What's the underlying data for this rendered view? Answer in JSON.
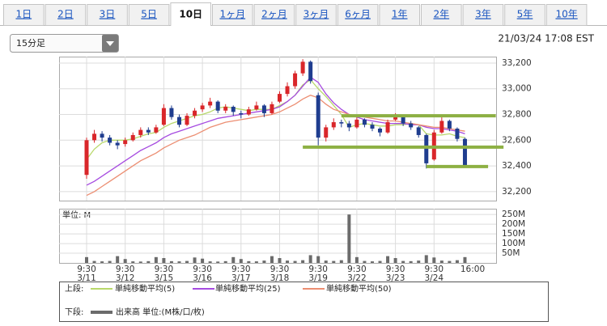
{
  "tabs": [
    "1日",
    "2日",
    "3日",
    "5日",
    "10日",
    "1ヶ月",
    "2ヶ月",
    "3ヶ月",
    "6ヶ月",
    "1年",
    "2年",
    "3年",
    "5年",
    "10年"
  ],
  "selected_tab": 4,
  "interval": "15分足",
  "timestamp": "21/03/24 17:08 EST",
  "legend": {
    "upper_label": "上段:",
    "lower_label": "下段:"
  },
  "chart_data": [
    {
      "type": "candlestick",
      "up_color": "#d9262a",
      "down_color": "#1f3d8f",
      "grid": true,
      "ylim": [
        32130,
        33250
      ],
      "yticks": [
        {
          "value": 32200,
          "label": "32,200"
        },
        {
          "value": 32400,
          "label": "32,400"
        },
        {
          "value": 32600,
          "label": "32,600"
        },
        {
          "value": 32800,
          "label": "32,800"
        },
        {
          "value": 33000,
          "label": "33,000"
        },
        {
          "value": 33200,
          "label": "33,200"
        }
      ],
      "open": [
        32330,
        32600,
        32650,
        32620,
        32580,
        32570,
        32600,
        32640,
        32680,
        32660,
        32720,
        32850,
        32780,
        32720,
        32790,
        32840,
        32870,
        32900,
        32830,
        32860,
        32810,
        32800,
        32840,
        32870,
        32810,
        32900,
        32960,
        33020,
        33120,
        33210,
        32950,
        32620,
        32700,
        32740,
        32730,
        32700,
        32760,
        32720,
        32690,
        32660,
        32760,
        32790,
        32730,
        32700,
        32640,
        32450,
        32660,
        32750,
        32690,
        32610
      ],
      "high": [
        32620,
        32680,
        32670,
        32640,
        32600,
        32620,
        32660,
        32700,
        32700,
        32720,
        32880,
        32870,
        32800,
        32810,
        32850,
        32890,
        32930,
        32910,
        32880,
        32870,
        32830,
        32860,
        32900,
        32880,
        32900,
        32980,
        33050,
        33140,
        33230,
        33220,
        32970,
        32720,
        32770,
        32760,
        32750,
        32780,
        32770,
        32740,
        32700,
        32760,
        32810,
        32800,
        32750,
        32710,
        32650,
        32680,
        32780,
        32760,
        32700,
        32620
      ],
      "low": [
        32300,
        32580,
        32590,
        32560,
        32530,
        32550,
        32590,
        32620,
        32640,
        32650,
        32710,
        32760,
        32700,
        32710,
        32770,
        32820,
        32850,
        32810,
        32810,
        32790,
        32770,
        32790,
        32830,
        32780,
        32800,
        32890,
        32940,
        33000,
        33100,
        33040,
        32560,
        32590,
        32680,
        32700,
        32670,
        32690,
        32700,
        32670,
        32630,
        32650,
        32750,
        32710,
        32680,
        32620,
        32380,
        32440,
        32650,
        32670,
        32590,
        32390
      ],
      "close": [
        32600,
        32650,
        32620,
        32580,
        32560,
        32600,
        32640,
        32680,
        32660,
        32700,
        32850,
        32780,
        32720,
        32790,
        32830,
        32870,
        32900,
        32830,
        32860,
        32820,
        32800,
        32840,
        32870,
        32810,
        32880,
        32960,
        33020,
        33120,
        33210,
        33060,
        32620,
        32700,
        32740,
        32730,
        32700,
        32760,
        32720,
        32690,
        32660,
        32740,
        32790,
        32730,
        32700,
        32640,
        32420,
        32660,
        32750,
        32690,
        32610,
        32400
      ],
      "series": [
        {
          "name": "単純移動平均(5)",
          "color": "#b8d86b",
          "values": [
            32450,
            32530,
            32580,
            32600,
            32600,
            32600,
            32610,
            32630,
            32650,
            32660,
            32700,
            32730,
            32750,
            32770,
            32790,
            32800,
            32820,
            32850,
            32860,
            32850,
            32840,
            32830,
            32840,
            32840,
            32840,
            32870,
            32900,
            32950,
            33030,
            33070,
            33000,
            32940,
            32870,
            32800,
            32700,
            32720,
            32730,
            32720,
            32710,
            32710,
            32720,
            32720,
            32730,
            32720,
            32650,
            32640,
            32640,
            32650,
            32630,
            32620
          ]
        },
        {
          "name": "単純移動平均(25)",
          "color": "#a64be0",
          "values": [
            32250,
            32280,
            32320,
            32360,
            32400,
            32440,
            32480,
            32520,
            32550,
            32580,
            32620,
            32650,
            32670,
            32690,
            32710,
            32730,
            32750,
            32770,
            32780,
            32790,
            32800,
            32810,
            32820,
            32830,
            32840,
            32860,
            32900,
            32950,
            33020,
            33090,
            33050,
            32960,
            32890,
            32840,
            32800,
            32780,
            32760,
            32750,
            32740,
            32730,
            32730,
            32730,
            32720,
            32720,
            32700,
            32690,
            32690,
            32680,
            32670,
            32650
          ]
        },
        {
          "name": "単純移動平均(50)",
          "color": "#ec8e72",
          "values": [
            32170,
            32200,
            32240,
            32280,
            32320,
            32360,
            32400,
            32440,
            32470,
            32500,
            32540,
            32570,
            32600,
            32620,
            32640,
            32670,
            32700,
            32720,
            32740,
            32750,
            32760,
            32770,
            32780,
            32790,
            32800,
            32820,
            32850,
            32880,
            32920,
            32950,
            32930,
            32880,
            32840,
            32820,
            32800,
            32790,
            32780,
            32770,
            32760,
            32750,
            32750,
            32740,
            32730,
            32720,
            32710,
            32700,
            32700,
            32690,
            32680,
            32670
          ]
        }
      ],
      "hlines": [
        {
          "value": 32790,
          "from": 33,
          "to": 53,
          "color": "#8db043"
        },
        {
          "value": 32546,
          "from": 28,
          "to": 54,
          "color": "#8db043"
        },
        {
          "value": 32395,
          "from": 44,
          "to": 52,
          "color": "#8db043"
        }
      ]
    },
    {
      "type": "bar",
      "subtitle": "単位: M",
      "color": "#6b6b6b",
      "grid": true,
      "ylim": [
        0,
        280
      ],
      "yticks": [
        {
          "value": 50,
          "label": "50M"
        },
        {
          "value": 100,
          "label": "100M"
        },
        {
          "value": 150,
          "label": "150M"
        },
        {
          "value": 200,
          "label": "200M"
        },
        {
          "value": 250,
          "label": "250M"
        }
      ],
      "categories": [
        "9:30",
        null,
        null,
        null,
        null,
        "9:30",
        null,
        null,
        null,
        null,
        "9:30",
        null,
        null,
        null,
        null,
        "9:30",
        null,
        null,
        null,
        null,
        "9:30",
        null,
        null,
        null,
        null,
        "9:30",
        null,
        null,
        null,
        null,
        "9:30",
        null,
        null,
        null,
        null,
        "9:30",
        null,
        null,
        null,
        null,
        "9:30",
        null,
        null,
        null,
        null,
        "9:30",
        null,
        null,
        null,
        "16:00"
      ],
      "dates": [
        "3/11",
        null,
        null,
        null,
        null,
        "3/12",
        null,
        null,
        null,
        null,
        "3/15",
        null,
        null,
        null,
        null,
        "3/16",
        null,
        null,
        null,
        null,
        "3/17",
        null,
        null,
        null,
        null,
        "3/18",
        null,
        null,
        null,
        null,
        "3/19",
        null,
        null,
        null,
        null,
        "3/22",
        null,
        null,
        null,
        null,
        "3/23",
        null,
        null,
        null,
        null,
        "3/24",
        null,
        null,
        null,
        null
      ],
      "series": [
        {
          "name": "出来高 単位:(M株/口/枚)",
          "values": [
            30,
            10,
            8,
            10,
            35,
            20,
            8,
            7,
            9,
            30,
            25,
            9,
            8,
            10,
            28,
            22,
            8,
            7,
            9,
            30,
            20,
            9,
            8,
            12,
            35,
            25,
            12,
            10,
            14,
            40,
            35,
            12,
            10,
            14,
            250,
            30,
            10,
            8,
            10,
            35,
            25,
            10,
            9,
            12,
            40,
            28,
            12,
            10,
            14,
            30
          ]
        }
      ]
    }
  ]
}
